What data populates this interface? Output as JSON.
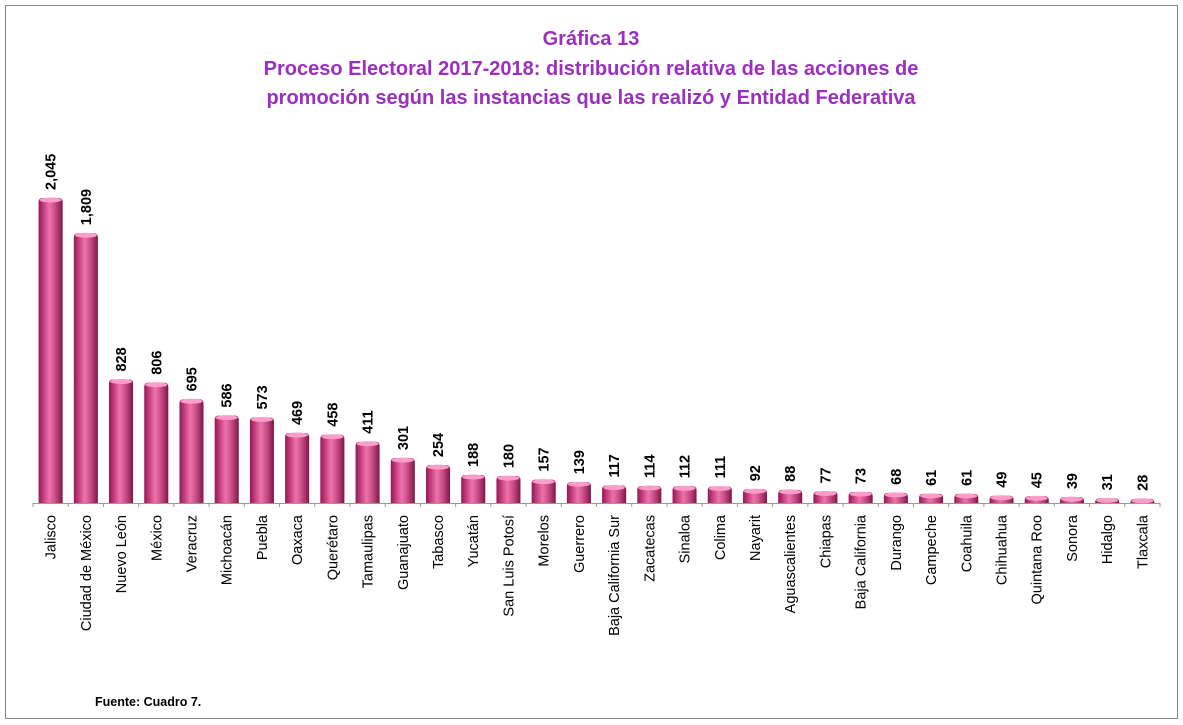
{
  "chart_data": {
    "type": "bar",
    "title": "Gráfica 13",
    "subtitle": [
      "Proceso Electoral 2017-2018: distribución relativa de las acciones de",
      "promoción según las instancias que las realizó y Entidad Federativa"
    ],
    "source": "Fuente: Cuadro 7.",
    "color": "#e8247f",
    "categories": [
      "Jalisco",
      "Ciudad de México",
      "Nuevo León",
      "México",
      "Veracruz",
      "Michoacán",
      "Puebla",
      "Oaxaca",
      "Querétaro",
      "Tamaulipas",
      "Guanajuato",
      "Tabasco",
      "Yucatán",
      "San Luis Potosí",
      "Morelos",
      "Guerrero",
      "Baja California Sur",
      "Zacatecas",
      "Sinaloa",
      "Colima",
      "Nayarit",
      "Aguascalientes",
      "Chiapas",
      "Baja California",
      "Durango",
      "Campeche",
      "Coahuila",
      "Chihuahua",
      "Quintana Roo",
      "Sonora",
      "Hidalgo",
      "Tlaxcala"
    ],
    "values": [
      2045,
      1809,
      828,
      806,
      695,
      586,
      573,
      469,
      458,
      411,
      301,
      254,
      188,
      180,
      157,
      139,
      117,
      114,
      112,
      111,
      92,
      88,
      77,
      73,
      68,
      61,
      61,
      49,
      45,
      39,
      31,
      28
    ],
    "value_labels": [
      "2,045",
      "1,809",
      "828",
      "806",
      "695",
      "586",
      "573",
      "469",
      "458",
      "411",
      "301",
      "254",
      "188",
      "180",
      "157",
      "139",
      "117",
      "114",
      "112",
      "111",
      "92",
      "88",
      "77",
      "73",
      "68",
      "61",
      "61",
      "49",
      "45",
      "39",
      "31",
      "28"
    ]
  }
}
